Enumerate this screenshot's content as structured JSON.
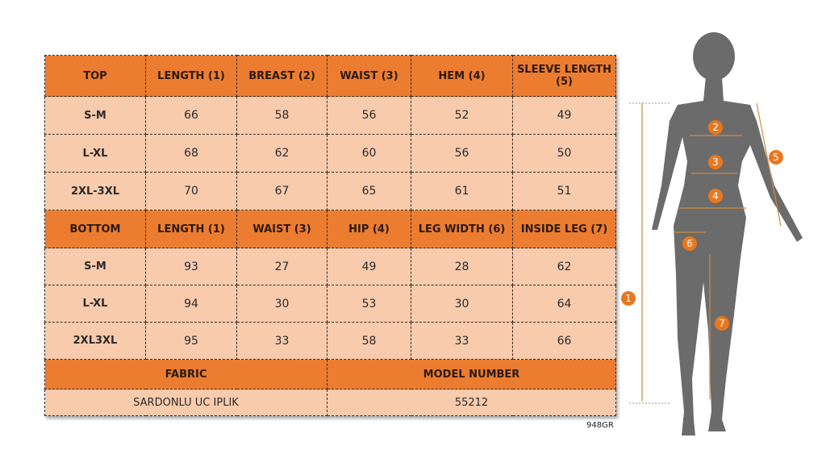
{
  "top": {
    "headers": [
      "TOP",
      "LENGTH (1)",
      "BREAST (2)",
      "WAIST (3)",
      "HEM (4)",
      "SLEEVE LENGTH (5)"
    ],
    "rows": [
      [
        "S-M",
        "66",
        "58",
        "56",
        "52",
        "49"
      ],
      [
        "L-XL",
        "68",
        "62",
        "60",
        "56",
        "50"
      ],
      [
        "2XL-3XL",
        "70",
        "67",
        "65",
        "61",
        "51"
      ]
    ]
  },
  "bottom": {
    "headers": [
      "BOTTOM",
      "LENGTH (1)",
      "WAIST (3)",
      "HIP (4)",
      "LEG WIDTH (6)",
      "INSIDE LEG (7)"
    ],
    "rows": [
      [
        "S-M",
        "93",
        "27",
        "49",
        "28",
        "62"
      ],
      [
        "L-XL",
        "94",
        "30",
        "53",
        "30",
        "64"
      ],
      [
        "2XL3XL",
        "95",
        "33",
        "58",
        "33",
        "66"
      ]
    ]
  },
  "fabric": {
    "label": "FABRIC",
    "value": "SARDONLU UC IPLIK"
  },
  "model": {
    "label": "MODEL NUMBER",
    "value": "55212"
  },
  "code": "948GR",
  "markers": [
    "1",
    "2",
    "3",
    "4",
    "5",
    "6",
    "7"
  ],
  "colors": {
    "header": "#ec7c30",
    "cell": "#f8cbad",
    "figure": "#6b6b6b",
    "marker": "#e8781e"
  }
}
